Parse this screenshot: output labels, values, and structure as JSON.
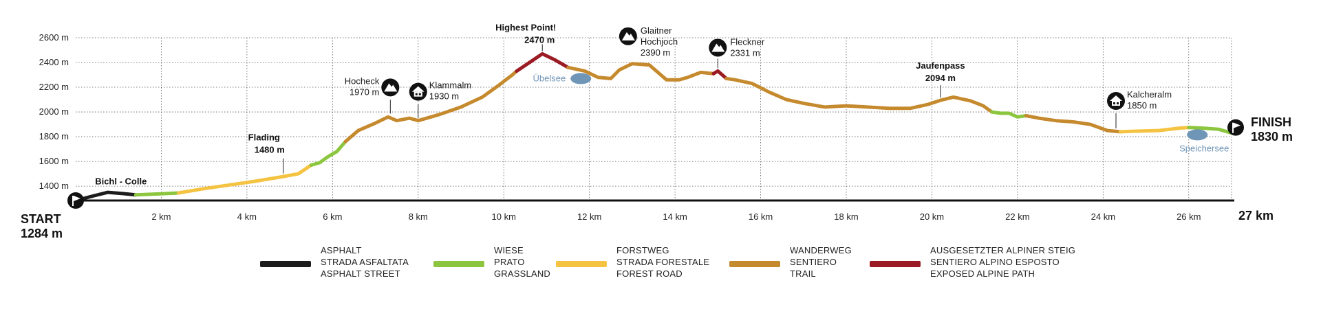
{
  "chart_data": {
    "type": "area",
    "x_unit": "km",
    "y_unit": "m",
    "xlim": [
      0,
      27
    ],
    "ylim": [
      1284,
      2600
    ],
    "y_ticks": [
      {
        "value": 1400,
        "label": "1400 m"
      },
      {
        "value": 1600,
        "label": "1600 m"
      },
      {
        "value": 1800,
        "label": "1800 m"
      },
      {
        "value": 2000,
        "label": "2000 m"
      },
      {
        "value": 2200,
        "label": "2200 m"
      },
      {
        "value": 2400,
        "label": "2400 m"
      },
      {
        "value": 2600,
        "label": "2600 m"
      }
    ],
    "x_ticks": [
      {
        "value": 2,
        "label": "2 km"
      },
      {
        "value": 4,
        "label": "4 km"
      },
      {
        "value": 6,
        "label": "6 km"
      },
      {
        "value": 8,
        "label": "8 km"
      },
      {
        "value": 10,
        "label": "10 km"
      },
      {
        "value": 12,
        "label": "12 km"
      },
      {
        "value": 14,
        "label": "14 km"
      },
      {
        "value": 16,
        "label": "16 km"
      },
      {
        "value": 18,
        "label": "18 km"
      },
      {
        "value": 20,
        "label": "20 km"
      },
      {
        "value": 22,
        "label": "22 km"
      },
      {
        "value": 24,
        "label": "24 km"
      },
      {
        "value": 26,
        "label": "26 km"
      }
    ],
    "grid": "dotted",
    "profile": [
      [
        0,
        1284
      ],
      [
        0.4,
        1320
      ],
      [
        0.75,
        1350
      ],
      [
        1.1,
        1340
      ],
      [
        1.4,
        1330
      ],
      [
        1.8,
        1335
      ],
      [
        2.4,
        1345
      ],
      [
        3.0,
        1380
      ],
      [
        3.6,
        1410
      ],
      [
        4.2,
        1440
      ],
      [
        4.8,
        1475
      ],
      [
        5.2,
        1500
      ],
      [
        5.5,
        1570
      ],
      [
        5.7,
        1590
      ],
      [
        5.9,
        1640
      ],
      [
        6.1,
        1680
      ],
      [
        6.3,
        1760
      ],
      [
        6.6,
        1850
      ],
      [
        7.0,
        1910
      ],
      [
        7.3,
        1960
      ],
      [
        7.5,
        1930
      ],
      [
        7.8,
        1950
      ],
      [
        8.0,
        1930
      ],
      [
        8.5,
        1980
      ],
      [
        9.0,
        2040
      ],
      [
        9.5,
        2120
      ],
      [
        9.9,
        2220
      ],
      [
        10.2,
        2300
      ],
      [
        10.3,
        2330
      ],
      [
        10.6,
        2400
      ],
      [
        10.9,
        2470
      ],
      [
        11.2,
        2420
      ],
      [
        11.5,
        2360
      ],
      [
        11.9,
        2330
      ],
      [
        12.2,
        2280
      ],
      [
        12.5,
        2270
      ],
      [
        12.7,
        2340
      ],
      [
        13.0,
        2390
      ],
      [
        13.4,
        2380
      ],
      [
        13.8,
        2260
      ],
      [
        14.1,
        2260
      ],
      [
        14.3,
        2280
      ],
      [
        14.6,
        2320
      ],
      [
        14.9,
        2310
      ],
      [
        15.0,
        2331
      ],
      [
        15.2,
        2270
      ],
      [
        15.4,
        2260
      ],
      [
        15.8,
        2230
      ],
      [
        16.2,
        2160
      ],
      [
        16.6,
        2100
      ],
      [
        17.0,
        2070
      ],
      [
        17.5,
        2040
      ],
      [
        18.0,
        2050
      ],
      [
        18.5,
        2040
      ],
      [
        19.0,
        2030
      ],
      [
        19.5,
        2030
      ],
      [
        19.9,
        2060
      ],
      [
        20.2,
        2094
      ],
      [
        20.5,
        2120
      ],
      [
        20.9,
        2090
      ],
      [
        21.2,
        2050
      ],
      [
        21.4,
        2000
      ],
      [
        21.6,
        1990
      ],
      [
        21.8,
        1990
      ],
      [
        22.0,
        1960
      ],
      [
        22.2,
        1970
      ],
      [
        22.5,
        1950
      ],
      [
        22.9,
        1930
      ],
      [
        23.3,
        1920
      ],
      [
        23.7,
        1900
      ],
      [
        24.1,
        1850
      ],
      [
        24.4,
        1840
      ],
      [
        24.8,
        1845
      ],
      [
        25.3,
        1850
      ],
      [
        25.8,
        1870
      ],
      [
        26.0,
        1875
      ],
      [
        26.3,
        1870
      ],
      [
        26.7,
        1860
      ],
      [
        27.0,
        1830
      ]
    ],
    "segments": [
      {
        "from": 0,
        "to": 1.4,
        "surface": "asphalt"
      },
      {
        "from": 1.4,
        "to": 2.4,
        "surface": "grassland"
      },
      {
        "from": 2.4,
        "to": 5.5,
        "surface": "forest"
      },
      {
        "from": 5.5,
        "to": 6.3,
        "surface": "grassland"
      },
      {
        "from": 6.3,
        "to": 10.3,
        "surface": "trail"
      },
      {
        "from": 10.3,
        "to": 11.5,
        "surface": "alpine"
      },
      {
        "from": 11.5,
        "to": 14.9,
        "surface": "trail"
      },
      {
        "from": 14.9,
        "to": 15.2,
        "surface": "alpine"
      },
      {
        "from": 15.2,
        "to": 21.4,
        "surface": "trail"
      },
      {
        "from": 21.4,
        "to": 22.2,
        "surface": "grassland"
      },
      {
        "from": 22.2,
        "to": 24.4,
        "surface": "trail"
      },
      {
        "from": 24.4,
        "to": 26.0,
        "surface": "forest"
      },
      {
        "from": 26.0,
        "to": 27.0,
        "surface": "grassland"
      }
    ],
    "surface_colors": {
      "asphalt": "#1c1c1c",
      "grassland": "#8cc63f",
      "forest": "#f5c342",
      "trail": "#c68a2e",
      "alpine": "#9b1b25"
    },
    "start": {
      "label": "START",
      "elevation": "1284 m",
      "icon": "flag-icon"
    },
    "finish": {
      "label": "FINISH",
      "elevation": "1830 m",
      "icon": "flag-icon"
    },
    "end_distance": "27 km",
    "waypoints": [
      {
        "name": "Bichl - Colle",
        "elevation": "",
        "x": 0.8,
        "y": 1360,
        "icon": "none"
      },
      {
        "name": "Flading",
        "elevation": "1480 m",
        "x": 4.85,
        "y": 1480,
        "icon": "none"
      },
      {
        "name": "Hocheck",
        "elevation": "1970 m",
        "x": 7.35,
        "y": 1965,
        "icon": "mountain-icon"
      },
      {
        "name": "Klammalm",
        "elevation": "1930 m",
        "x": 8.0,
        "y": 1930,
        "icon": "hut-icon"
      },
      {
        "name": "Highest Point!",
        "elevation": "2470 m",
        "x": 10.9,
        "y": 2470,
        "icon": "none"
      },
      {
        "name": "Glaitner Hochjoch",
        "elevation": "2390 m",
        "x": 13.0,
        "y": 2390,
        "icon": "mountain-icon"
      },
      {
        "name": "Fleckner",
        "elevation": "2331 m",
        "x": 15.0,
        "y": 2331,
        "icon": "mountain-icon"
      },
      {
        "name": "Jaufenpass",
        "elevation": "2094 m",
        "x": 20.2,
        "y": 2094,
        "icon": "none"
      },
      {
        "name": "Kalcheralm",
        "elevation": "1850 m",
        "x": 24.3,
        "y": 1845,
        "icon": "hut-icon"
      }
    ],
    "lakes": [
      {
        "name": "Übelsee",
        "x": 11.8,
        "y": 2270
      },
      {
        "name": "Speichersee",
        "x": 26.2,
        "y": 1815
      }
    ]
  },
  "legend": [
    {
      "surface": "asphalt",
      "lines": [
        "ASPHALT",
        "STRADA ASFALTATA",
        "ASPHALT STREET"
      ]
    },
    {
      "surface": "grassland",
      "lines": [
        "WIESE",
        "PRATO",
        "GRASSLAND"
      ]
    },
    {
      "surface": "forest",
      "lines": [
        "FORSTWEG",
        "STRADA FORESTALE",
        "FOREST ROAD"
      ]
    },
    {
      "surface": "trail",
      "lines": [
        "WANDERWEG",
        "SENTIERO",
        "TRAIL"
      ]
    },
    {
      "surface": "alpine",
      "lines": [
        "AUSGESETZTER ALPINER STEIG",
        "SENTIERO ALPINO ESPOSTO",
        "EXPOSED ALPINE PATH"
      ]
    }
  ]
}
